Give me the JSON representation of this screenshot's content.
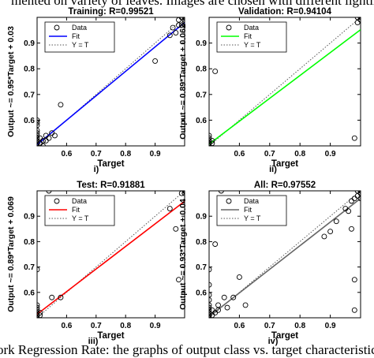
{
  "captions": {
    "top": "mented on variety of leaves. Images are chosen with different lighting",
    "bottom": "ork Regression Rate: the graphs of output class vs. target characteristic"
  },
  "chart_data": [
    {
      "type": "scatter",
      "title": "Training: R=0.99521",
      "xlabel": "Target",
      "ylabel": "Output ~= 0.95*Target + 0.03",
      "sublabel": "i)",
      "xlim": [
        0.5,
        1.0
      ],
      "ylim": [
        0.5,
        1.0
      ],
      "xticks": [
        "0.6",
        "0.7",
        "0.8",
        "0.9"
      ],
      "yticks": [
        "0.6",
        "0.7",
        "0.8",
        "0.9"
      ],
      "legend": {
        "position": "top-left",
        "entries": [
          "Data",
          "Fit",
          "Y = T"
        ]
      },
      "fit": {
        "slope": 0.95,
        "intercept": 0.03,
        "color": "#0000ff"
      },
      "points": [
        [
          0.5,
          0.6
        ],
        [
          0.5,
          0.59
        ],
        [
          0.5,
          0.58
        ],
        [
          0.5,
          0.56
        ],
        [
          0.5,
          0.55
        ],
        [
          0.5,
          0.54
        ],
        [
          0.5,
          0.53
        ],
        [
          0.5,
          0.52
        ],
        [
          0.5,
          0.51
        ],
        [
          0.5,
          0.5
        ],
        [
          0.51,
          0.51
        ],
        [
          0.51,
          0.53
        ],
        [
          0.52,
          0.5
        ],
        [
          0.52,
          0.52
        ],
        [
          0.53,
          0.52
        ],
        [
          0.53,
          0.54
        ],
        [
          0.54,
          0.53
        ],
        [
          0.55,
          0.55
        ],
        [
          0.56,
          0.54
        ],
        [
          0.58,
          0.66
        ],
        [
          0.9,
          0.83
        ],
        [
          0.95,
          0.93
        ],
        [
          0.96,
          0.96
        ],
        [
          0.97,
          0.94
        ],
        [
          0.98,
          0.97
        ],
        [
          0.99,
          0.97
        ],
        [
          1.0,
          0.98
        ],
        [
          1.0,
          0.99
        ],
        [
          1.0,
          1.0
        ],
        [
          0.99,
          1.0
        ],
        [
          0.98,
          0.99
        ],
        [
          1.0,
          0.97
        ]
      ]
    },
    {
      "type": "scatter",
      "title": "Validation: R=0.94104",
      "xlabel": "Target",
      "ylabel": "Output ~= 0.89*Target + 0.062",
      "sublabel": "ii)",
      "xlim": [
        0.5,
        1.0
      ],
      "ylim": [
        0.5,
        1.0
      ],
      "xticks": [
        "0.6",
        "0.7",
        "0.8",
        "0.9"
      ],
      "yticks": [
        "0.6",
        "0.7",
        "0.8",
        "0.9"
      ],
      "legend": {
        "position": "top-left",
        "entries": [
          "Data",
          "Fit",
          "Y = T"
        ]
      },
      "fit": {
        "slope": 0.89,
        "intercept": 0.062,
        "color": "#00ff00"
      },
      "points": [
        [
          0.5,
          0.5
        ],
        [
          0.5,
          0.51
        ],
        [
          0.5,
          0.52
        ],
        [
          0.5,
          0.53
        ],
        [
          0.5,
          0.54
        ],
        [
          0.51,
          0.51
        ],
        [
          0.51,
          0.52
        ],
        [
          0.52,
          0.79
        ],
        [
          0.98,
          0.53
        ],
        [
          0.99,
          0.98
        ],
        [
          1.0,
          0.99
        ],
        [
          1.0,
          1.0
        ],
        [
          0.99,
          1.0
        ]
      ]
    },
    {
      "type": "scatter",
      "title": "Test: R=0.91881",
      "xlabel": "Target",
      "ylabel": "Output ~= 0.89*Target + 0.069",
      "sublabel": "iii)",
      "xlim": [
        0.5,
        1.0
      ],
      "ylim": [
        0.5,
        1.0
      ],
      "xticks": [
        "0.6",
        "0.7",
        "0.8",
        "0.9"
      ],
      "yticks": [
        "0.6",
        "0.7",
        "0.8",
        "0.9"
      ],
      "legend": {
        "position": "top-left",
        "entries": [
          "Data",
          "Fit",
          "Y = T"
        ]
      },
      "fit": {
        "slope": 0.89,
        "intercept": 0.069,
        "color": "#ff0000"
      },
      "points": [
        [
          0.5,
          0.69
        ],
        [
          0.5,
          0.55
        ],
        [
          0.5,
          0.54
        ],
        [
          0.5,
          0.53
        ],
        [
          0.5,
          0.52
        ],
        [
          0.5,
          0.51
        ],
        [
          0.5,
          0.5
        ],
        [
          0.51,
          0.51
        ],
        [
          0.51,
          0.52
        ],
        [
          0.54,
          1.0
        ],
        [
          0.55,
          0.58
        ],
        [
          0.58,
          0.58
        ],
        [
          0.95,
          0.93
        ],
        [
          0.97,
          0.85
        ],
        [
          0.98,
          0.65
        ],
        [
          0.99,
          0.99
        ],
        [
          1.0,
          1.0
        ],
        [
          1.0,
          0.99
        ]
      ]
    },
    {
      "type": "scatter",
      "title": "All: R=0.97552",
      "xlabel": "Target",
      "ylabel": "Output ~= 0.93*Target + 0.04",
      "sublabel": "iv)",
      "xlim": [
        0.5,
        1.0
      ],
      "ylim": [
        0.5,
        1.0
      ],
      "xticks": [
        "0.6",
        "0.7",
        "0.8",
        "0.9"
      ],
      "yticks": [
        "0.6",
        "0.7",
        "0.8",
        "0.9"
      ],
      "legend": {
        "position": "top-left",
        "entries": [
          "Data",
          "Fit",
          "Y = T"
        ]
      },
      "fit": {
        "slope": 0.93,
        "intercept": 0.04,
        "color": "#666666"
      },
      "points": [
        [
          0.5,
          0.69
        ],
        [
          0.5,
          0.63
        ],
        [
          0.5,
          0.59
        ],
        [
          0.5,
          0.57
        ],
        [
          0.5,
          0.55
        ],
        [
          0.5,
          0.54
        ],
        [
          0.5,
          0.53
        ],
        [
          0.5,
          0.52
        ],
        [
          0.5,
          0.51
        ],
        [
          0.5,
          0.5
        ],
        [
          0.51,
          0.51
        ],
        [
          0.51,
          0.53
        ],
        [
          0.52,
          0.52
        ],
        [
          0.52,
          0.79
        ],
        [
          0.53,
          0.53
        ],
        [
          0.53,
          0.55
        ],
        [
          0.54,
          1.0
        ],
        [
          0.55,
          0.58
        ],
        [
          0.56,
          0.54
        ],
        [
          0.58,
          0.58
        ],
        [
          0.6,
          0.66
        ],
        [
          0.62,
          0.55
        ],
        [
          0.88,
          0.82
        ],
        [
          0.9,
          0.84
        ],
        [
          0.92,
          0.88
        ],
        [
          0.95,
          0.93
        ],
        [
          0.96,
          0.92
        ],
        [
          0.97,
          0.85
        ],
        [
          0.97,
          0.96
        ],
        [
          0.98,
          0.65
        ],
        [
          0.98,
          0.53
        ],
        [
          0.98,
          0.97
        ],
        [
          0.99,
          0.98
        ],
        [
          1.0,
          0.99
        ],
        [
          1.0,
          1.0
        ],
        [
          0.99,
          1.0
        ],
        [
          1.0,
          0.97
        ]
      ]
    }
  ]
}
